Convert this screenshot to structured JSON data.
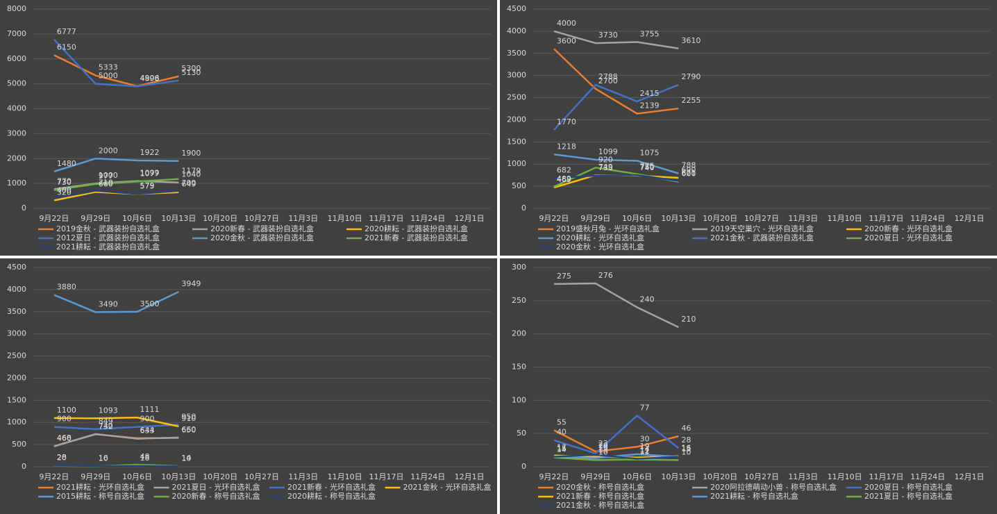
{
  "chart_data": [
    {
      "type": "line",
      "categories": [
        "9月22日",
        "9月29日",
        "10月6日",
        "10月13日",
        "10月20日",
        "10月27日",
        "11月3日",
        "11月10日",
        "11月17日",
        "11月24日",
        "12月1日"
      ],
      "ylim": [
        0,
        8000
      ],
      "yticks": [
        0,
        1000,
        2000,
        3000,
        4000,
        5000,
        6000,
        7000,
        8000
      ],
      "grid": true,
      "series": [
        {
          "name": "2019金秋 - 武器装扮自选礼盒",
          "color": "#ed7d31",
          "values": [
            6150,
            5333,
            4906,
            5300,
            null,
            null,
            null,
            null,
            null,
            null,
            null
          ]
        },
        {
          "name": "2020新春 - 武器装扮自选礼盒",
          "color": "#a5a5a5",
          "values": [
            770,
            1000,
            1099,
            1040,
            null,
            null,
            null,
            null,
            null,
            null,
            null
          ]
        },
        {
          "name": "2020耕耘 - 武器装扮自选礼盒",
          "color": "#ffc000",
          "values": [
            320,
            660,
            575,
            649,
            null,
            null,
            null,
            null,
            null,
            null,
            null
          ]
        },
        {
          "name": "2012夏日 - 武器装扮自选礼盒",
          "color": "#4472c4",
          "values": [
            6777,
            5000,
            4898,
            5130,
            null,
            null,
            null,
            null,
            null,
            null,
            null
          ]
        },
        {
          "name": "2020金秋 - 武器装扮自选礼盒",
          "color": "#5b9bd5",
          "values": [
            1480,
            2000,
            1922,
            1900,
            null,
            null,
            null,
            null,
            null,
            null,
            null
          ]
        },
        {
          "name": "2021新春 - 武器装扮自选礼盒",
          "color": "#70ad47",
          "values": [
            730,
            977,
            1077,
            1179,
            null,
            null,
            null,
            null,
            null,
            null,
            null
          ]
        },
        {
          "name": "2021耕耘 - 武器装扮自选礼盒",
          "color": "#264478",
          "values": [
            400,
            710,
            579,
            700,
            null,
            null,
            null,
            null,
            null,
            null,
            null
          ]
        }
      ]
    },
    {
      "type": "line",
      "categories": [
        "9月22日",
        "9月29日",
        "10月6日",
        "10月13日",
        "10月20日",
        "10月27日",
        "11月3日",
        "11月10日",
        "11月17日",
        "11月24日",
        "12月1日"
      ],
      "ylim": [
        0,
        4500
      ],
      "yticks": [
        0,
        500,
        1000,
        1500,
        2000,
        2500,
        3000,
        3500,
        4000,
        4500
      ],
      "grid": true,
      "series": [
        {
          "name": "2019盛秋月兔 - 光环自选礼盒",
          "color": "#ed7d31",
          "values": [
            3600,
            2700,
            2139,
            2255,
            null,
            null,
            null,
            null,
            null,
            null,
            null
          ]
        },
        {
          "name": "2019天空巢穴 - 光环自选礼盒",
          "color": "#a5a5a5",
          "values": [
            4000,
            3730,
            3755,
            3610,
            null,
            null,
            null,
            null,
            null,
            null,
            null
          ]
        },
        {
          "name": "2020新春 - 光环自选礼盒",
          "color": "#ffc000",
          "values": [
            469,
            749,
            740,
            690,
            null,
            null,
            null,
            null,
            null,
            null,
            null
          ]
        },
        {
          "name": "2020耕耘 - 光环自选礼盒",
          "color": "#5b9bd5",
          "values": [
            1218,
            1099,
            1075,
            788,
            null,
            null,
            null,
            null,
            null,
            null,
            null
          ]
        },
        {
          "name": "2021金秋 - 武器装扮自选礼盒",
          "color": "#4472c4",
          "values": [
            1770,
            2788,
            2415,
            2790,
            null,
            null,
            null,
            null,
            null,
            null,
            null
          ]
        },
        {
          "name": "2020夏日 - 光环自选礼盒",
          "color": "#70ad47",
          "values": [
            489,
            920,
            775,
            600,
            null,
            null,
            null,
            null,
            null,
            null,
            null
          ]
        },
        {
          "name": "2020金秋 - 光环自选礼盒",
          "color": "#264478",
          "values": [
            682,
            738,
            750,
            621,
            null,
            null,
            null,
            null,
            null,
            null,
            null
          ]
        }
      ]
    },
    {
      "type": "line",
      "categories": [
        "9月22日",
        "9月29日",
        "10月6日",
        "10月13日",
        "10月20日",
        "10月27日",
        "11月3日",
        "11月10日",
        "11月17日",
        "11月24日",
        "12月1日"
      ],
      "ylim": [
        0,
        4500
      ],
      "yticks": [
        0,
        500,
        1000,
        1500,
        2000,
        2500,
        3000,
        3500,
        4000,
        4500
      ],
      "grid": true,
      "series": [
        {
          "name": "2021耕耘 - 光环自选礼盒",
          "color": "#ed7d31",
          "values": [
            468,
            732,
            644,
            650,
            null,
            null,
            null,
            null,
            null,
            null,
            null
          ]
        },
        {
          "name": "2021夏日 - 光环自选礼盒",
          "color": "#a5a5a5",
          "values": [
            460,
            740,
            633,
            660,
            null,
            null,
            null,
            null,
            null,
            null,
            null
          ]
        },
        {
          "name": "2021新春 - 光环自选礼盒",
          "color": "#4472c4",
          "values": [
            900,
            849,
            900,
            950,
            null,
            null,
            null,
            null,
            null,
            null,
            null
          ]
        },
        {
          "name": "2021金秋 - 光环自选礼盒",
          "color": "#ffc000",
          "values": [
            1100,
            1093,
            1111,
            910,
            null,
            null,
            null,
            null,
            null,
            null,
            null
          ]
        },
        {
          "name": "2015耕耘 - 称号自选礼盒",
          "color": "#5b9bd5",
          "values": [
            3880,
            3490,
            3500,
            3949,
            null,
            null,
            null,
            null,
            null,
            null,
            null
          ]
        },
        {
          "name": "2020新春 - 称号自选礼盒",
          "color": "#70ad47",
          "values": [
            20,
            10,
            48,
            14,
            null,
            null,
            null,
            null,
            null,
            null,
            null
          ]
        },
        {
          "name": "2020耕耘 - 称号自选礼盒",
          "color": "#264478",
          "values": [
            28,
            16,
            18,
            10,
            null,
            null,
            null,
            null,
            null,
            null,
            null
          ]
        }
      ]
    },
    {
      "type": "line",
      "categories": [
        "9月22日",
        "9月29日",
        "10月6日",
        "10月13日",
        "10月20日",
        "10月27日",
        "11月3日",
        "11月10日",
        "11月17日",
        "11月24日",
        "12月1日"
      ],
      "ylim": [
        0,
        300
      ],
      "yticks": [
        0,
        50,
        100,
        150,
        200,
        250,
        300
      ],
      "grid": true,
      "series": [
        {
          "name": "2020金秋 - 称号自选礼盒",
          "color": "#ed7d31",
          "values": [
            55,
            23,
            30,
            46,
            null,
            null,
            null,
            null,
            null,
            null,
            null
          ]
        },
        {
          "name": "2020阿拉德萌动小兽 - 称号自选礼盒",
          "color": "#a5a5a5",
          "values": [
            275,
            276,
            240,
            210,
            null,
            null,
            null,
            null,
            null,
            null,
            null
          ]
        },
        {
          "name": "2020夏日 - 称号自选礼盒",
          "color": "#4472c4",
          "values": [
            40,
            20,
            77,
            28,
            null,
            null,
            null,
            null,
            null,
            null,
            null
          ]
        },
        {
          "name": "2021新春 - 称号自选礼盒",
          "color": "#ffc000",
          "values": [
            17,
            15,
            14,
            16,
            null,
            null,
            null,
            null,
            null,
            null,
            null
          ]
        },
        {
          "name": "2021耕耘 - 称号自选礼盒",
          "color": "#5b9bd5",
          "values": [
            15,
            13,
            19,
            15,
            null,
            null,
            null,
            null,
            null,
            null,
            null
          ]
        },
        {
          "name": "2021夏日 - 称号自选礼盒",
          "color": "#70ad47",
          "values": [
            14,
            10,
            11,
            10,
            null,
            null,
            null,
            null,
            null,
            null,
            null
          ]
        },
        {
          "name": "2021金秋 - 称号自选礼盒",
          "color": "#264478",
          "values": [
            15,
            18,
            12,
            15,
            null,
            null,
            null,
            null,
            null,
            null,
            null
          ]
        }
      ]
    }
  ]
}
